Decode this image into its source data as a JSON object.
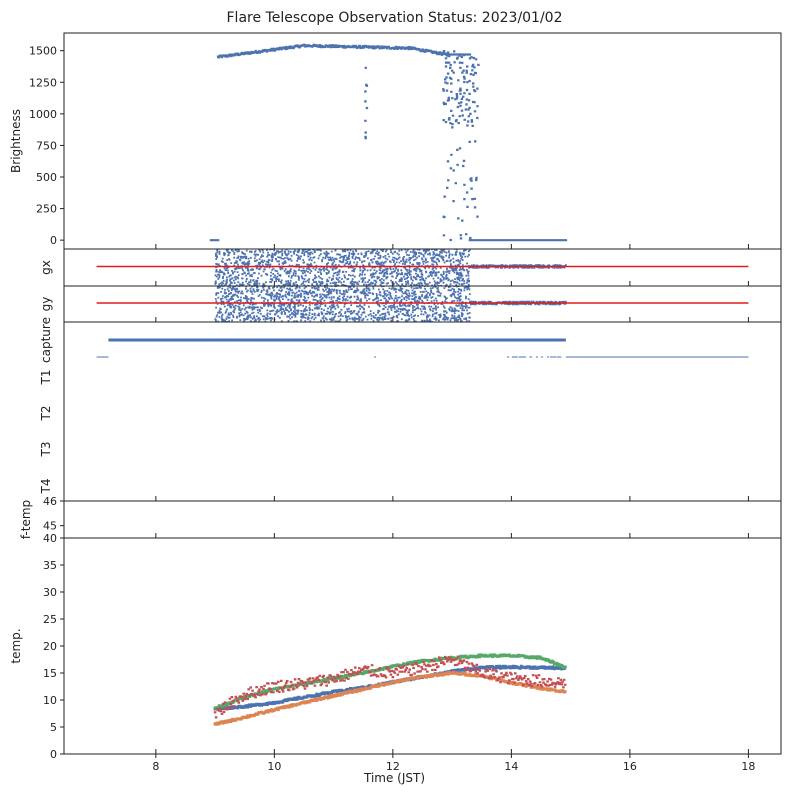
{
  "title": "Flare Telescope Observation Status: 2023/01/02",
  "chart_data": {
    "type": "scatter",
    "xlabel": "Time (JST)",
    "xlim": [
      6.45,
      18.55
    ],
    "x_ticks": [
      8,
      10,
      12,
      14,
      16,
      18
    ],
    "x_ticklabels": [
      "8",
      "10",
      "12",
      "14",
      "16",
      "18"
    ],
    "colors": {
      "blue": "#4c72b0",
      "orange": "#dd8452",
      "green": "#55a868",
      "red": "#c44e52",
      "line_red": "#e41a1c"
    },
    "panels": [
      {
        "id": "brightness",
        "ylabel": "Brightness",
        "ylim": [
          -70,
          1640
        ],
        "y_ticks": [
          0,
          250,
          500,
          750,
          1000,
          1250,
          1500
        ],
        "y_ticklabels": [
          "0",
          "250",
          "500",
          "750",
          "1000",
          "1250",
          "1500"
        ],
        "series": [
          {
            "name": "brightness",
            "color": "#4c72b0",
            "segments": [
              {
                "x_start": 8.93,
                "x_end": 9.05,
                "y": 0
              },
              {
                "x_start": 9.05,
                "x_end": 10.5,
                "y_start": 1450,
                "y_end": 1540
              },
              {
                "x_start": 10.5,
                "x_end": 12.3,
                "y_start": 1540,
                "y_end": 1520
              },
              {
                "x_start": 12.3,
                "x_end": 12.95,
                "y_start": 1520,
                "y_end": 1465
              },
              {
                "x_start": 12.95,
                "x_end": 13.3,
                "y": 1470
              },
              {
                "x_start": 13.3,
                "x_end": 14.92,
                "y": 0
              }
            ],
            "dips": [
              {
                "x": 11.55,
                "y_min": 740
              }
            ],
            "drop_region": [
              12.85,
              13.45
            ]
          }
        ]
      },
      {
        "id": "gx",
        "ylabel": "gx",
        "y_ticks": [],
        "y_ticklabels": [],
        "reference_line": {
          "color": "#e41a1c",
          "x_start": 7.0,
          "x_end": 18.0
        },
        "scatter_region": [
          9.0,
          14.92
        ],
        "noisy_region": [
          9.0,
          13.3
        ]
      },
      {
        "id": "gy",
        "ylabel": "gy",
        "y_ticks": [],
        "y_ticklabels": [],
        "reference_line": {
          "color": "#e41a1c",
          "x_start": 7.0,
          "x_end": 18.0
        },
        "scatter_region": [
          9.0,
          14.92
        ],
        "noisy_region": [
          9.0,
          13.3
        ]
      },
      {
        "id": "capture",
        "ylabels": [
          "capture",
          "T1",
          "T2",
          "T3",
          "T4"
        ],
        "y_ticks": [],
        "y_ticklabels": [],
        "series": [
          {
            "name": "capture",
            "color": "#4c72b0",
            "x_start": 7.2,
            "x_end": 14.92
          },
          {
            "name": "T1",
            "color": "#4c72b0",
            "segments": [
              [
                7.0,
                7.2
              ],
              [
                14.92,
                18.0
              ]
            ],
            "sparse": [
              11.7,
              13.9,
              14.92
            ]
          }
        ]
      },
      {
        "id": "f-temp",
        "ylabel": "f-temp",
        "ylim": [
          44.5,
          46
        ],
        "y_ticks": [
          45,
          46
        ],
        "y_ticklabels": [
          "45",
          "46"
        ]
      },
      {
        "id": "temp",
        "ylabel": "temp.",
        "ylim": [
          0,
          40
        ],
        "y_ticks": [
          0,
          5,
          10,
          15,
          20,
          25,
          30,
          35,
          40
        ],
        "y_ticklabels": [
          "0",
          "5",
          "10",
          "15",
          "20",
          "25",
          "30",
          "35",
          "40"
        ],
        "series": [
          {
            "name": "blue",
            "color": "#4c72b0",
            "x": [
              9.0,
              9.5,
              10.0,
              10.5,
              11.0,
              11.5,
              12.0,
              12.5,
              13.0,
              13.5,
              14.0,
              14.5,
              14.92
            ],
            "y": [
              8.4,
              8.8,
              9.5,
              10.5,
              11.5,
              12.3,
              13.3,
              14.3,
              15.3,
              16.0,
              16.1,
              16.0,
              15.9
            ]
          },
          {
            "name": "orange",
            "color": "#dd8452",
            "x": [
              9.0,
              9.5,
              10.0,
              10.5,
              11.0,
              11.5,
              12.0,
              12.5,
              13.0,
              13.5,
              14.0,
              14.5,
              14.92
            ],
            "y": [
              5.5,
              6.8,
              8.2,
              9.5,
              10.8,
              12.0,
              13.3,
              14.3,
              15.0,
              14.5,
              13.2,
              12.2,
              11.5
            ]
          },
          {
            "name": "green",
            "color": "#55a868",
            "x": [
              9.0,
              9.5,
              10.0,
              10.5,
              11.0,
              11.5,
              12.0,
              12.5,
              13.0,
              13.5,
              14.0,
              14.5,
              14.92
            ],
            "y": [
              8.5,
              10.5,
              12.0,
              13.0,
              14.0,
              15.0,
              16.2,
              17.2,
              17.8,
              18.2,
              18.2,
              17.8,
              16.0
            ]
          },
          {
            "name": "red",
            "color": "#c44e52",
            "x": [
              9.0,
              9.5,
              10.0,
              10.5,
              11.0,
              11.5,
              12.0,
              12.5,
              13.0,
              13.5,
              14.0,
              14.5,
              14.92
            ],
            "y": [
              7.5,
              11.0,
              12.5,
              13.0,
              14.0,
              15.5,
              15.0,
              16.0,
              17.5,
              15.0,
              14.0,
              13.5,
              13.2
            ]
          }
        ]
      }
    ]
  }
}
